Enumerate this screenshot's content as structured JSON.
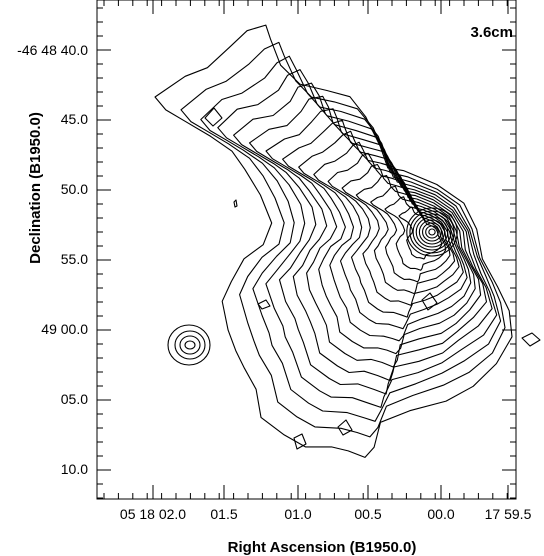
{
  "chart_data": {
    "type": "contour",
    "annotation": "3.6cm",
    "xlabel": "Right Ascension (B1950.0)",
    "ylabel": "Declination (B1950.0)",
    "x_ticks": [
      "05 18 02.0",
      "01.5",
      "01.0",
      "00.5",
      "00.0",
      "17 59.5"
    ],
    "y_ticks": [
      "-46 48 40.0",
      "45.0",
      "50.0",
      "55.0",
      "49 00.0",
      "05.0",
      "10.0"
    ],
    "contour_levels": 16
  }
}
